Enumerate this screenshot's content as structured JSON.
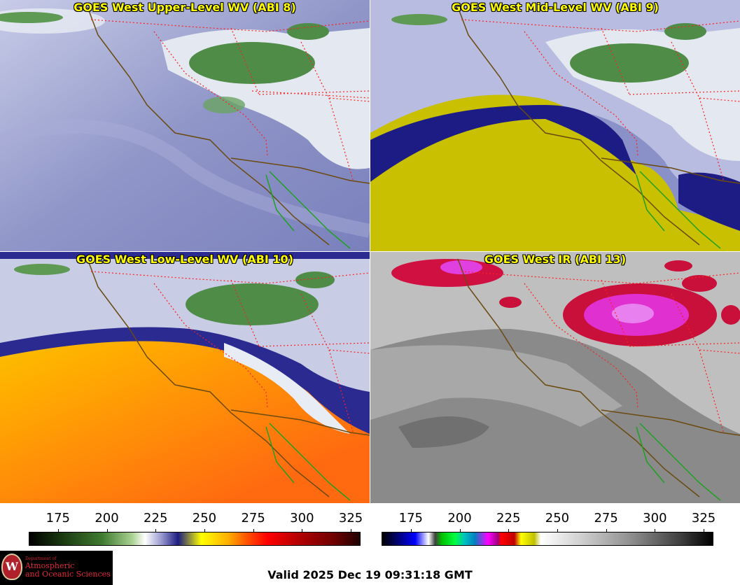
{
  "panels": [
    {
      "title": "GOES West Upper-Level WV (ABI 8)",
      "band": "upper-wv"
    },
    {
      "title": "GOES West Mid-Level WV (ABI 9)",
      "band": "mid-wv"
    },
    {
      "title": "GOES West Low-Level WV (ABI 10)",
      "band": "low-wv"
    },
    {
      "title": "GOES West IR (ABI 13)",
      "band": "ir"
    }
  ],
  "colorbar_left": {
    "ticks": [
      "175",
      "200",
      "225",
      "250",
      "275",
      "300",
      "325"
    ],
    "tick_values": [
      175,
      200,
      225,
      250,
      275,
      300,
      325
    ],
    "range": [
      160,
      330
    ]
  },
  "colorbar_right": {
    "ticks": [
      "175",
      "200",
      "225",
      "250",
      "275",
      "300",
      "325"
    ],
    "tick_values": [
      175,
      200,
      225,
      250,
      275,
      300,
      325
    ],
    "range": [
      160,
      330
    ]
  },
  "valid_time": "Valid 2025 Dec 19 09:31:18 GMT",
  "logo": {
    "seal_letter": "W",
    "line1": "Department of",
    "line2": "Atmospheric",
    "line3": "and Oceanic Sciences"
  },
  "colors": {
    "coastline": "#6b4a10",
    "state_borders": "#ff2020",
    "mexico_coast": "#20a020",
    "title": "#ffff00"
  }
}
